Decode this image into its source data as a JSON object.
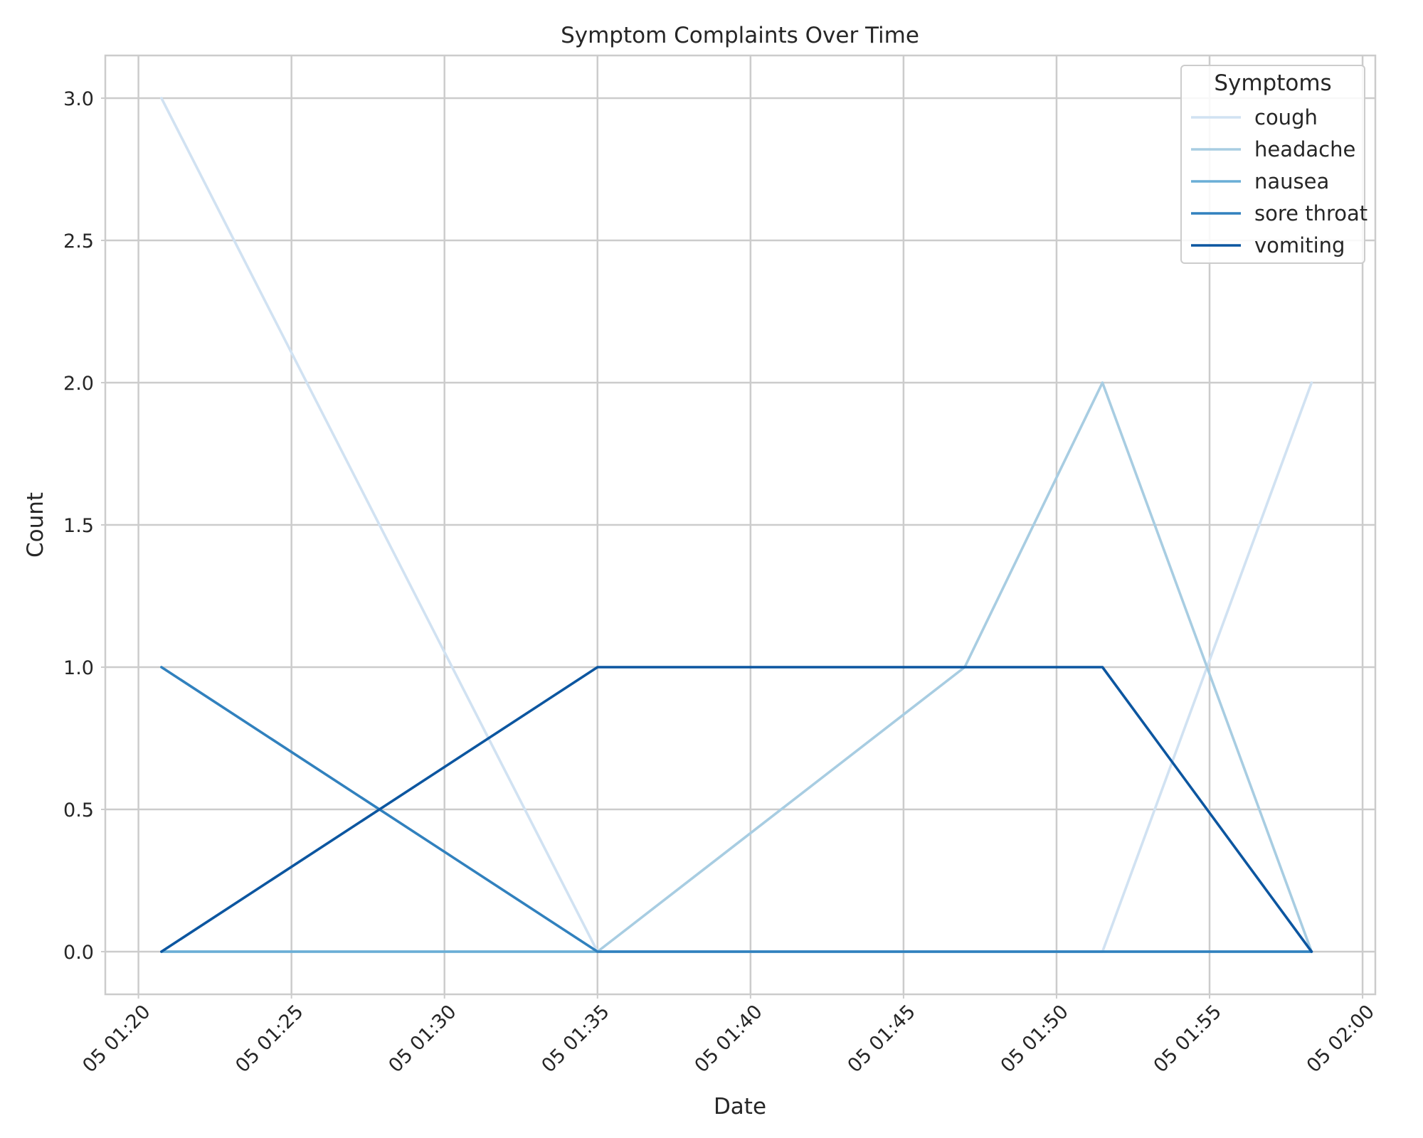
{
  "chart_data": {
    "type": "line",
    "title": "Symptom Complaints Over Time",
    "xlabel": "Date",
    "ylabel": "Count",
    "x_axis_kind": "time",
    "xlim": [
      "2000-01-05T01:18:55",
      "2000-01-05T02:00:25"
    ],
    "ylim": [
      -0.15,
      3.15
    ],
    "x_ticks": [
      {
        "value": "2000-01-05T01:20:00",
        "label": "05 01:20"
      },
      {
        "value": "2000-01-05T01:25:00",
        "label": "05 01:25"
      },
      {
        "value": "2000-01-05T01:30:00",
        "label": "05 01:30"
      },
      {
        "value": "2000-01-05T01:35:00",
        "label": "05 01:35"
      },
      {
        "value": "2000-01-05T01:40:00",
        "label": "05 01:40"
      },
      {
        "value": "2000-01-05T01:45:00",
        "label": "05 01:45"
      },
      {
        "value": "2000-01-05T01:50:00",
        "label": "05 01:50"
      },
      {
        "value": "2000-01-05T01:55:00",
        "label": "05 01:55"
      },
      {
        "value": "2000-01-05T02:00:00",
        "label": "05 02:00"
      }
    ],
    "y_ticks": [
      {
        "value": 0.0,
        "label": "0.0"
      },
      {
        "value": 0.5,
        "label": "0.5"
      },
      {
        "value": 1.0,
        "label": "1.0"
      },
      {
        "value": 1.5,
        "label": "1.5"
      },
      {
        "value": 2.0,
        "label": "2.0"
      },
      {
        "value": 2.5,
        "label": "2.5"
      },
      {
        "value": 3.0,
        "label": "3.0"
      }
    ],
    "x": [
      "2000-01-05T01:20:45",
      "2000-01-05T01:35:00",
      "2000-01-05T01:47:00",
      "2000-01-05T01:51:30",
      "2000-01-05T01:58:20"
    ],
    "series": [
      {
        "name": "cough",
        "color": "#d1e2f2",
        "values": [
          3,
          0,
          0,
          0,
          2
        ]
      },
      {
        "name": "headache",
        "color": "#a8cde2",
        "values": [
          0,
          0,
          1,
          2,
          0
        ]
      },
      {
        "name": "nausea",
        "color": "#6aaed6",
        "values": [
          0,
          0,
          0,
          0,
          0
        ]
      },
      {
        "name": "sore throat",
        "color": "#3181be",
        "values": [
          1,
          0,
          0,
          0,
          0
        ]
      },
      {
        "name": "vomiting",
        "color": "#0c56a0",
        "values": [
          0,
          1,
          1,
          1,
          0
        ]
      }
    ],
    "legend": {
      "title": "Symptoms",
      "placement": "top-right"
    },
    "grid": true
  }
}
